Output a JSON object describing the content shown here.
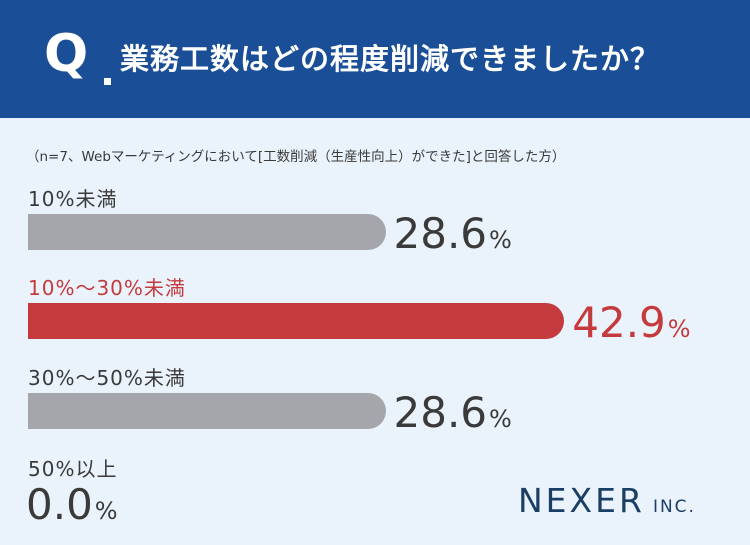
{
  "header": {
    "q_mark": "Q",
    "title": "業務工数はどの程度削減できましたか？"
  },
  "note": "（n=7、Webマーケティングにおいて[工数削減（生産性向上）ができた]と回答した方）",
  "colors": {
    "header_bg": "#1a4e97",
    "highlight": "#c43a3d",
    "bar_default": "#a4a6ab",
    "text": "#3a3a3a"
  },
  "chart_data": {
    "type": "bar",
    "orientation": "horizontal",
    "categories": [
      "10%未満",
      "10%～30%未満",
      "30%～50%未満",
      "50%以上"
    ],
    "values": [
      28.6,
      42.9,
      28.6,
      0.0
    ],
    "value_labels": [
      "28.6",
      "42.9",
      "28.6",
      "0.0"
    ],
    "unit": "%",
    "highlight_index": 1,
    "xlim": [
      0,
      100
    ]
  },
  "logo": {
    "main": "NEXER",
    "sub": "INC."
  }
}
